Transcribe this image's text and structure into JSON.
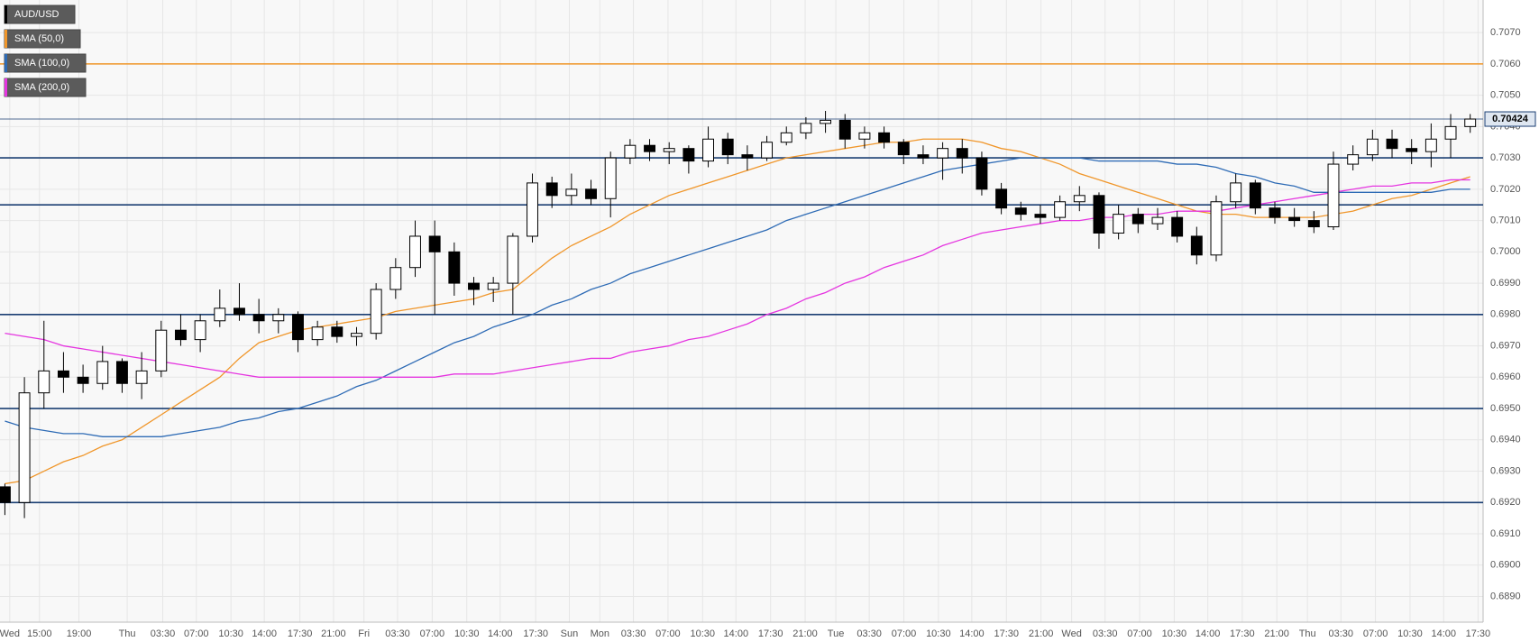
{
  "chart_data": {
    "type": "candlestick",
    "x": [
      0,
      1,
      2,
      3,
      4,
      5,
      6,
      7,
      8,
      9,
      10,
      11,
      12,
      13,
      14,
      15,
      16,
      17,
      18,
      19,
      20,
      21,
      22,
      23,
      24,
      25,
      26,
      27,
      28,
      29,
      30,
      31,
      32,
      33,
      34,
      35,
      36,
      37,
      38,
      39,
      40,
      41,
      42,
      43,
      44,
      45,
      46,
      47,
      48,
      49,
      50,
      51,
      52,
      53,
      54,
      55,
      56,
      57,
      58,
      59,
      60,
      61,
      62,
      63,
      64,
      65,
      66,
      67,
      68,
      69,
      70,
      71,
      72,
      73,
      74,
      75
    ],
    "series": [
      {
        "name": "AUD/USD",
        "color": "#000000",
        "open": [
          0.6925,
          0.692,
          0.6955,
          0.6962,
          0.696,
          0.6958,
          0.6965,
          0.6958,
          0.6962,
          0.6975,
          0.6972,
          0.6978,
          0.6982,
          0.698,
          0.6978,
          0.698,
          0.6972,
          0.6976,
          0.6973,
          0.6974,
          0.6988,
          0.6995,
          0.7005,
          0.7,
          0.699,
          0.6988,
          0.699,
          0.7005,
          0.7022,
          0.7018,
          0.702,
          0.7017,
          0.703,
          0.7034,
          0.7032,
          0.7033,
          0.7029,
          0.7036,
          0.7031,
          0.703,
          0.7035,
          0.7038,
          0.7041,
          0.7042,
          0.7036,
          0.7038,
          0.7035,
          0.7031,
          0.703,
          0.7033,
          0.703,
          0.702,
          0.7014,
          0.7012,
          0.7011,
          0.7016,
          0.7018,
          0.7006,
          0.7012,
          0.7009,
          0.7011,
          0.7005,
          0.6999,
          0.7016,
          0.7022,
          0.7014,
          0.7011,
          0.701,
          0.7008,
          0.7028,
          0.7031,
          0.7036,
          0.7033,
          0.7032,
          0.7036,
          0.704
        ],
        "high": [
          0.6926,
          0.696,
          0.6978,
          0.6968,
          0.6964,
          0.697,
          0.6966,
          0.6968,
          0.6978,
          0.698,
          0.698,
          0.6988,
          0.699,
          0.6985,
          0.6982,
          0.6981,
          0.6978,
          0.6978,
          0.6976,
          0.699,
          0.6998,
          0.701,
          0.701,
          0.7003,
          0.6992,
          0.6992,
          0.7006,
          0.7025,
          0.7024,
          0.7025,
          0.7023,
          0.7032,
          0.7036,
          0.7036,
          0.7035,
          0.7034,
          0.704,
          0.7038,
          0.7034,
          0.7037,
          0.704,
          0.7043,
          0.7045,
          0.7044,
          0.704,
          0.704,
          0.7036,
          0.7034,
          0.7035,
          0.7036,
          0.7032,
          0.7022,
          0.7016,
          0.7015,
          0.7018,
          0.7021,
          0.7019,
          0.7015,
          0.7014,
          0.7014,
          0.7013,
          0.7008,
          0.7018,
          0.7025,
          0.7023,
          0.7016,
          0.7014,
          0.7013,
          0.7032,
          0.7034,
          0.7039,
          0.7039,
          0.7036,
          0.7041,
          0.7044,
          0.7044
        ],
        "low": [
          0.6916,
          0.6915,
          0.695,
          0.6955,
          0.6955,
          0.6956,
          0.6955,
          0.6953,
          0.696,
          0.697,
          0.6968,
          0.6976,
          0.6978,
          0.6974,
          0.6974,
          0.6968,
          0.697,
          0.6971,
          0.697,
          0.6972,
          0.6985,
          0.6992,
          0.698,
          0.6986,
          0.6983,
          0.6984,
          0.698,
          0.7003,
          0.7014,
          0.7015,
          0.7015,
          0.7011,
          0.7028,
          0.7029,
          0.7028,
          0.7025,
          0.7027,
          0.7028,
          0.7026,
          0.7029,
          0.7034,
          0.7036,
          0.7038,
          0.7033,
          0.7033,
          0.7033,
          0.7028,
          0.7028,
          0.7023,
          0.7025,
          0.7018,
          0.7012,
          0.701,
          0.7009,
          0.701,
          0.7013,
          0.7001,
          0.7004,
          0.7006,
          0.7007,
          0.7003,
          0.6996,
          0.6997,
          0.7014,
          0.7012,
          0.7009,
          0.7008,
          0.7006,
          0.7007,
          0.7026,
          0.7029,
          0.703,
          0.7028,
          0.7027,
          0.703,
          0.7038
        ],
        "close": [
          0.692,
          0.6955,
          0.6962,
          0.696,
          0.6958,
          0.6965,
          0.6958,
          0.6962,
          0.6975,
          0.6972,
          0.6978,
          0.6982,
          0.698,
          0.6978,
          0.698,
          0.6972,
          0.6976,
          0.6973,
          0.6974,
          0.6988,
          0.6995,
          0.7005,
          0.7,
          0.699,
          0.6988,
          0.699,
          0.7005,
          0.7022,
          0.7018,
          0.702,
          0.7017,
          0.703,
          0.7034,
          0.7032,
          0.7033,
          0.7029,
          0.7036,
          0.7031,
          0.703,
          0.7035,
          0.7038,
          0.7041,
          0.7042,
          0.7036,
          0.7038,
          0.7035,
          0.7031,
          0.703,
          0.7033,
          0.703,
          0.702,
          0.7014,
          0.7012,
          0.7011,
          0.7016,
          0.7018,
          0.7006,
          0.7012,
          0.7009,
          0.7011,
          0.7005,
          0.6999,
          0.7016,
          0.7022,
          0.7014,
          0.7011,
          0.701,
          0.7008,
          0.7028,
          0.7031,
          0.7036,
          0.7033,
          0.7032,
          0.7036,
          0.704,
          0.70424
        ]
      }
    ],
    "lines": [
      {
        "name": "SMA (50,0)",
        "color": "#f0962a",
        "values": [
          0.6926,
          0.6927,
          0.693,
          0.6933,
          0.6935,
          0.6938,
          0.694,
          0.6944,
          0.6948,
          0.6952,
          0.6956,
          0.696,
          0.6966,
          0.6971,
          0.6973,
          0.6975,
          0.6976,
          0.6977,
          0.6978,
          0.6979,
          0.6981,
          0.6982,
          0.6983,
          0.6984,
          0.6985,
          0.6987,
          0.6988,
          0.6993,
          0.6998,
          0.7002,
          0.7005,
          0.7008,
          0.7012,
          0.7015,
          0.7018,
          0.702,
          0.7022,
          0.7024,
          0.7026,
          0.7028,
          0.703,
          0.7031,
          0.7032,
          0.7033,
          0.7034,
          0.7035,
          0.7035,
          0.7036,
          0.7036,
          0.7036,
          0.7035,
          0.7033,
          0.7032,
          0.703,
          0.7028,
          0.7025,
          0.7023,
          0.7021,
          0.7019,
          0.7017,
          0.7015,
          0.7013,
          0.7012,
          0.7012,
          0.7011,
          0.7011,
          0.7011,
          0.7011,
          0.7012,
          0.7013,
          0.7015,
          0.7017,
          0.7018,
          0.702,
          0.7022,
          0.7024
        ]
      },
      {
        "name": "SMA (100,0)",
        "color": "#2e6bb5",
        "values": [
          0.6946,
          0.6944,
          0.6943,
          0.6942,
          0.6942,
          0.6941,
          0.6941,
          0.6941,
          0.6941,
          0.6942,
          0.6943,
          0.6944,
          0.6946,
          0.6947,
          0.6949,
          0.695,
          0.6952,
          0.6954,
          0.6957,
          0.6959,
          0.6962,
          0.6965,
          0.6968,
          0.6971,
          0.6973,
          0.6976,
          0.6978,
          0.698,
          0.6983,
          0.6985,
          0.6988,
          0.699,
          0.6993,
          0.6995,
          0.6997,
          0.6999,
          0.7001,
          0.7003,
          0.7005,
          0.7007,
          0.701,
          0.7012,
          0.7014,
          0.7016,
          0.7018,
          0.702,
          0.7022,
          0.7024,
          0.7026,
          0.7027,
          0.7028,
          0.7029,
          0.703,
          0.703,
          0.703,
          0.703,
          0.7029,
          0.7029,
          0.7029,
          0.7029,
          0.7028,
          0.7028,
          0.7027,
          0.7025,
          0.7024,
          0.7022,
          0.7021,
          0.7019,
          0.7019,
          0.7019,
          0.7019,
          0.7019,
          0.7019,
          0.7019,
          0.702,
          0.702
        ]
      },
      {
        "name": "SMA (200,0)",
        "color": "#e535e0",
        "values": [
          0.6974,
          0.6973,
          0.6972,
          0.697,
          0.6969,
          0.6968,
          0.6967,
          0.6966,
          0.6965,
          0.6964,
          0.6963,
          0.6962,
          0.6961,
          0.696,
          0.696,
          0.696,
          0.696,
          0.696,
          0.696,
          0.696,
          0.696,
          0.696,
          0.696,
          0.6961,
          0.6961,
          0.6961,
          0.6962,
          0.6963,
          0.6964,
          0.6965,
          0.6966,
          0.6966,
          0.6968,
          0.6969,
          0.697,
          0.6972,
          0.6973,
          0.6975,
          0.6977,
          0.698,
          0.6982,
          0.6985,
          0.6987,
          0.699,
          0.6992,
          0.6995,
          0.6997,
          0.6999,
          0.7002,
          0.7004,
          0.7006,
          0.7007,
          0.7008,
          0.7009,
          0.701,
          0.701,
          0.7011,
          0.7011,
          0.7012,
          0.7012,
          0.7013,
          0.7013,
          0.7013,
          0.7014,
          0.7015,
          0.7016,
          0.7017,
          0.7018,
          0.7019,
          0.702,
          0.7021,
          0.7021,
          0.7022,
          0.7022,
          0.7023,
          0.7023
        ]
      }
    ],
    "levels": [
      {
        "value": 0.706,
        "color": "#f0962a"
      },
      {
        "value": 0.703,
        "color": "#1b3f73"
      },
      {
        "value": 0.7015,
        "color": "#1b3f73"
      },
      {
        "value": 0.698,
        "color": "#1b3f73"
      },
      {
        "value": 0.695,
        "color": "#1b3f73"
      },
      {
        "value": 0.692,
        "color": "#1b3f73"
      }
    ],
    "last_price": 0.70424,
    "xlim": [
      -0.25,
      75.66
    ],
    "ylim": [
      0.68818,
      0.70804
    ],
    "yticks": [
      {
        "value": 0.689,
        "label": "0.6890"
      },
      {
        "value": 0.69,
        "label": "0.6900"
      },
      {
        "value": 0.691,
        "label": "0.6910"
      },
      {
        "value": 0.692,
        "label": "0.6920"
      },
      {
        "value": 0.693,
        "label": "0.6930"
      },
      {
        "value": 0.694,
        "label": "0.6940"
      },
      {
        "value": 0.695,
        "label": "0.6950"
      },
      {
        "value": 0.696,
        "label": "0.6960"
      },
      {
        "value": 0.697,
        "label": "0.6970"
      },
      {
        "value": 0.698,
        "label": "0.6980"
      },
      {
        "value": 0.699,
        "label": "0.6990"
      },
      {
        "value": 0.7,
        "label": "0.7000"
      },
      {
        "value": 0.701,
        "label": "0.7010"
      },
      {
        "value": 0.702,
        "label": "0.7020"
      },
      {
        "value": 0.703,
        "label": "0.7030"
      },
      {
        "value": 0.704,
        "label": "0.7040"
      },
      {
        "value": 0.705,
        "label": "0.7050"
      },
      {
        "value": 0.706,
        "label": "0.7060"
      },
      {
        "value": 0.707,
        "label": "0.7070"
      }
    ],
    "xticks": [
      {
        "value": 0.25,
        "label": "Wed"
      },
      {
        "value": 1.77,
        "label": "15:00"
      },
      {
        "value": 3.79,
        "label": "19:00"
      },
      {
        "value": 6.26,
        "label": "Thu"
      },
      {
        "value": 8.08,
        "label": "03:30"
      },
      {
        "value": 9.8,
        "label": "07:00"
      },
      {
        "value": 11.57,
        "label": "10:30"
      },
      {
        "value": 13.28,
        "label": "14:00"
      },
      {
        "value": 15.1,
        "label": "17:30"
      },
      {
        "value": 16.82,
        "label": "21:00"
      },
      {
        "value": 18.38,
        "label": "Fri"
      },
      {
        "value": 20.1,
        "label": "03:30"
      },
      {
        "value": 21.87,
        "label": "07:00"
      },
      {
        "value": 23.64,
        "label": "10:30"
      },
      {
        "value": 25.35,
        "label": "14:00"
      },
      {
        "value": 27.17,
        "label": "17:30"
      },
      {
        "value": 28.89,
        "label": "Sun"
      },
      {
        "value": 30.45,
        "label": "Mon"
      },
      {
        "value": 32.17,
        "label": "03:30"
      },
      {
        "value": 33.94,
        "label": "07:00"
      },
      {
        "value": 35.71,
        "label": "10:30"
      },
      {
        "value": 37.42,
        "label": "14:00"
      },
      {
        "value": 39.19,
        "label": "17:30"
      },
      {
        "value": 40.96,
        "label": "21:00"
      },
      {
        "value": 42.53,
        "label": "Tue"
      },
      {
        "value": 44.24,
        "label": "03:30"
      },
      {
        "value": 46.01,
        "label": "07:00"
      },
      {
        "value": 47.78,
        "label": "10:30"
      },
      {
        "value": 49.49,
        "label": "14:00"
      },
      {
        "value": 51.26,
        "label": "17:30"
      },
      {
        "value": 53.03,
        "label": "21:00"
      },
      {
        "value": 54.6,
        "label": "Wed"
      },
      {
        "value": 56.31,
        "label": "03:30"
      },
      {
        "value": 58.08,
        "label": "07:00"
      },
      {
        "value": 59.85,
        "label": "10:30"
      },
      {
        "value": 61.57,
        "label": "14:00"
      },
      {
        "value": 63.33,
        "label": "17:30"
      },
      {
        "value": 65.1,
        "label": "21:00"
      },
      {
        "value": 66.67,
        "label": "Thu"
      },
      {
        "value": 68.38,
        "label": "03:30"
      },
      {
        "value": 70.15,
        "label": "07:00"
      },
      {
        "value": 71.92,
        "label": "10:30"
      },
      {
        "value": 73.64,
        "label": "14:00"
      },
      {
        "value": 75.4,
        "label": "17:30"
      }
    ],
    "grid": true
  }
}
